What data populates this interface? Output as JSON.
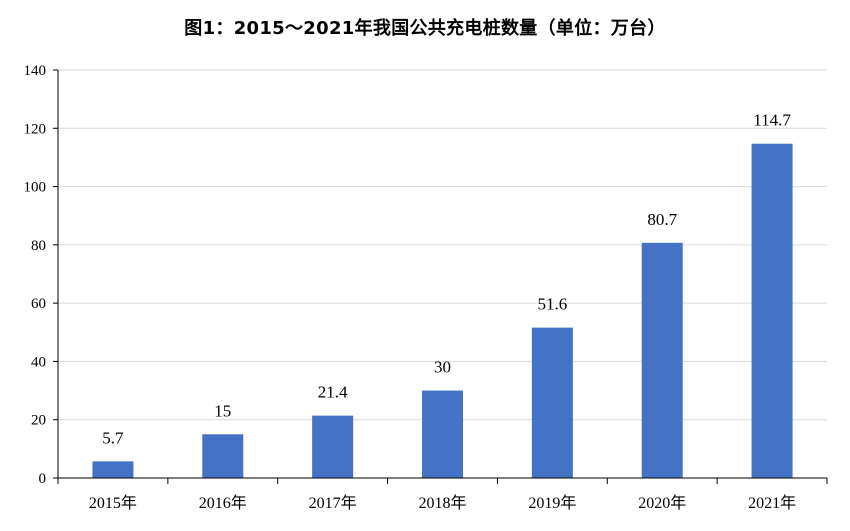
{
  "chart_data": {
    "type": "bar",
    "title": "图1：2015～2021年我国公共充电桩数量（单位：万台）",
    "categories": [
      "2015年",
      "2016年",
      "2017年",
      "2018年",
      "2019年",
      "2020年",
      "2021年"
    ],
    "values": [
      5.7,
      15,
      21.4,
      30,
      51.6,
      80.7,
      114.7
    ],
    "data_labels": [
      "5.7",
      "15",
      "21.4",
      "30",
      "51.6",
      "80.7",
      "114.7"
    ],
    "xlabel": "",
    "ylabel": "",
    "ylim": [
      0,
      140
    ],
    "yticks": [
      0,
      20,
      40,
      60,
      80,
      100,
      120,
      140
    ],
    "ytick_labels": [
      "0",
      "20",
      "40",
      "60",
      "80",
      "100",
      "120",
      "140"
    ],
    "grid": true,
    "legend": "none",
    "bar_color": "#4472C4",
    "grid_color": "#D9D9D9",
    "axis_color": "#000000"
  }
}
